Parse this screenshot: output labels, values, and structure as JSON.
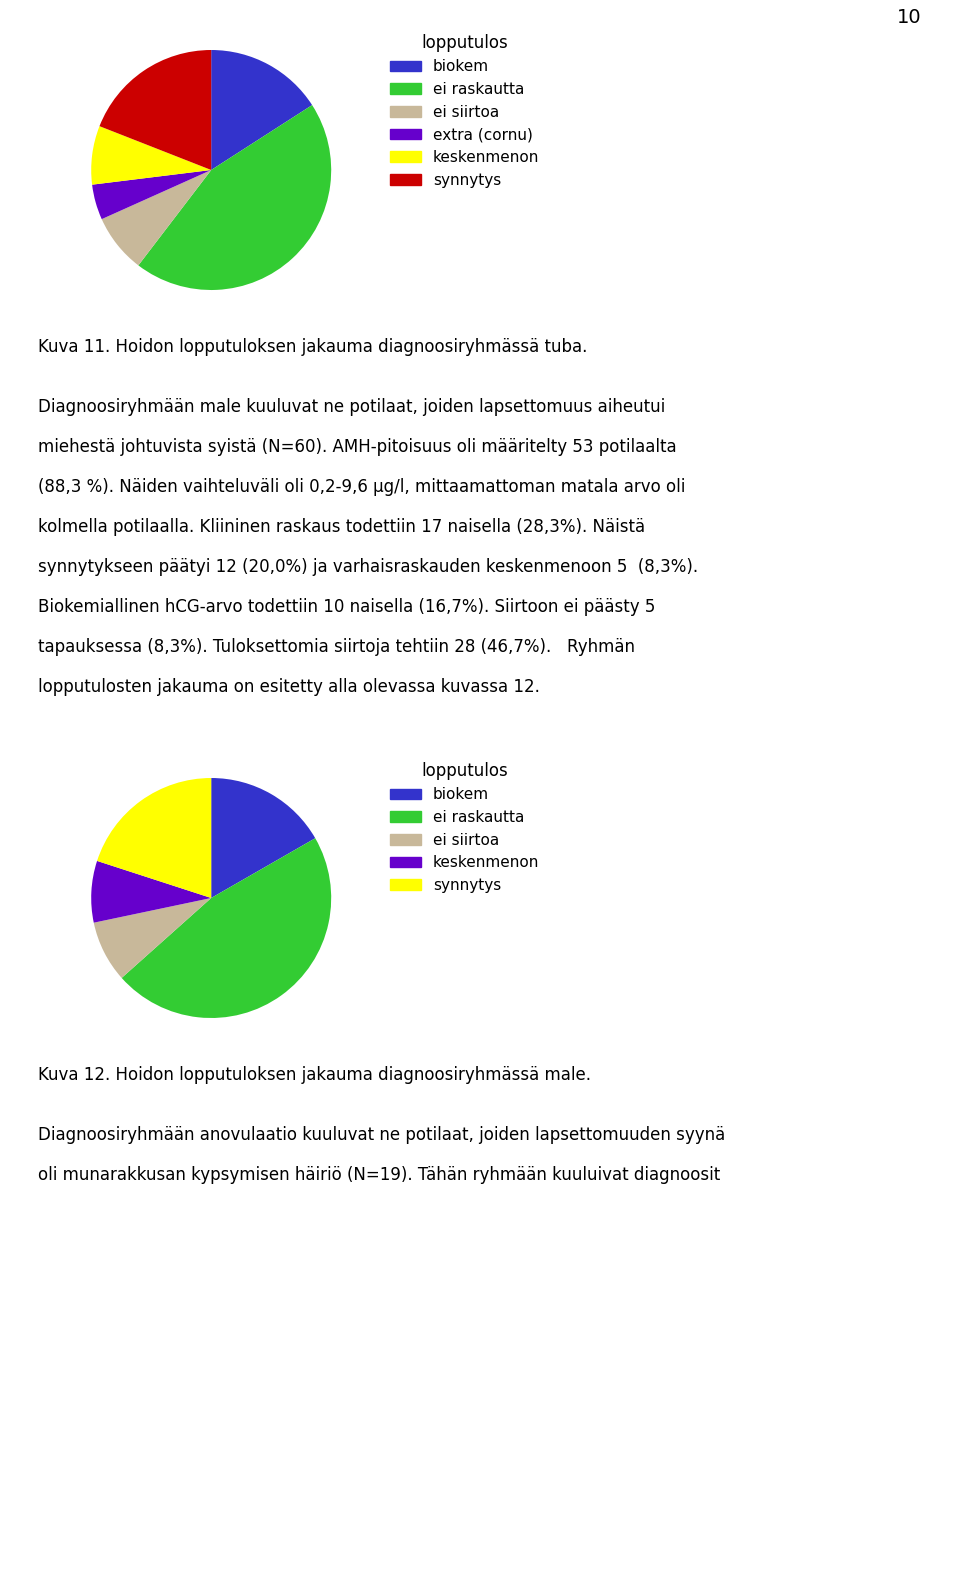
{
  "annotations": [
    "10"
  ],
  "chart_data": [
    {
      "type": "pie",
      "title": "lopputulos",
      "categories": [
        "biokem",
        "ei raskautta",
        "ei siirtoa",
        "extra (cornu)",
        "keskenmenon",
        "synnytys"
      ],
      "values": [
        16.7,
        46.7,
        8.3,
        5.0,
        8.3,
        20.0
      ],
      "colors": [
        "#3333cc",
        "#33cc33",
        "#c8b89a",
        "#6600cc",
        "#ffff00",
        "#cc0000"
      ],
      "legend": "upper left",
      "annotations": [
        "Kuva 11. Hoidon lopputuloksen jakauma diagnoosiryhmässä tuba.",
        "Diagnoosiryhmään male kuuluvat ne potilaat, joiden lapsettomuus aiheutui",
        "miehestä johtuvista syistä (N=60). AMH-pitoisuus oli määritelty 53 potilaalta",
        "(88,3 %). Näiden vaihteluväli oli 0,2-9,6 μg/l, mittaamattoman matala arvo oli",
        "kolmella potilaalla. Kliininen raskaus todettiin 17 naisella (28,3%). Näistä",
        "synnytykseen päätyi 12 (20,0%) ja varhaisraskauden keskenmenoon 5  (8,3%).",
        "Biokemiallinen hCG-arvo todettiin 10 naisella (16,7%). Siirtoon ei päästy 5",
        "tapauksessa (8,3%). Tuloksettomia siirtoja tehtiin 28 (46,7%).   Ryhmän",
        "lopputulosten jakauma on esitetty alla olevassa kuvassa 12."
      ]
    },
    {
      "type": "pie",
      "title": "lopputulos",
      "categories": [
        "biokem",
        "ei raskautta",
        "ei siirtoa",
        "keskenmenon",
        "synnytys"
      ],
      "values": [
        16.7,
        46.7,
        8.3,
        8.3,
        20.0
      ],
      "colors": [
        "#3333cc",
        "#33cc33",
        "#c8b89a",
        "#6600cc",
        "#ffff00"
      ],
      "legend": "upper left",
      "annotations": [
        "Kuva 12. Hoidon lopputuloksen jakauma diagnoosiryhmässä male.",
        "Diagnoosiryhmään anovulaatio kuuluvat ne potilaat, joiden lapsettomuuden syynä",
        "oli munarakkusan kypsymisen häiriö (N=19). Tähän ryhmään kuuluivat diagnoosit"
      ]
    }
  ]
}
